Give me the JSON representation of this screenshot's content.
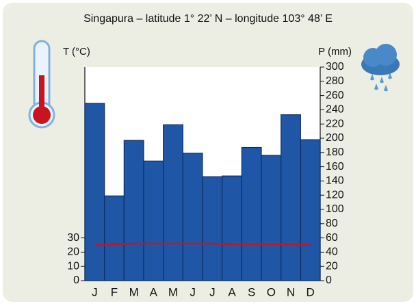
{
  "chart_data": {
    "type": "climograph",
    "title": "Singapura – latitude 1° 22’ N – longitude 103° 48’ E",
    "ylabel": "T (°C)",
    "y2label": "P (mm)",
    "categories": [
      "J",
      "F",
      "M",
      "A",
      "M",
      "J",
      "J",
      "A",
      "S",
      "O",
      "N",
      "D"
    ],
    "precipitation": {
      "color": "#1f56a5",
      "axis": "y2",
      "values": [
        249,
        119,
        197,
        168,
        219,
        179,
        146,
        147,
        187,
        176,
        233,
        198
      ]
    },
    "temperature": {
      "color": "#c8141e",
      "values": [
        25,
        25.5,
        26,
        26,
        26,
        26,
        26,
        25.5,
        25.5,
        25.5,
        25.5,
        25
      ]
    },
    "ylim": [
      0,
      150
    ],
    "yticks": [
      0,
      10,
      20,
      30
    ],
    "y2lim": [
      0,
      300
    ],
    "y2ticks": [
      0,
      20,
      40,
      60,
      80,
      100,
      120,
      140,
      160,
      180,
      200,
      220,
      240,
      260,
      280,
      300
    ]
  }
}
